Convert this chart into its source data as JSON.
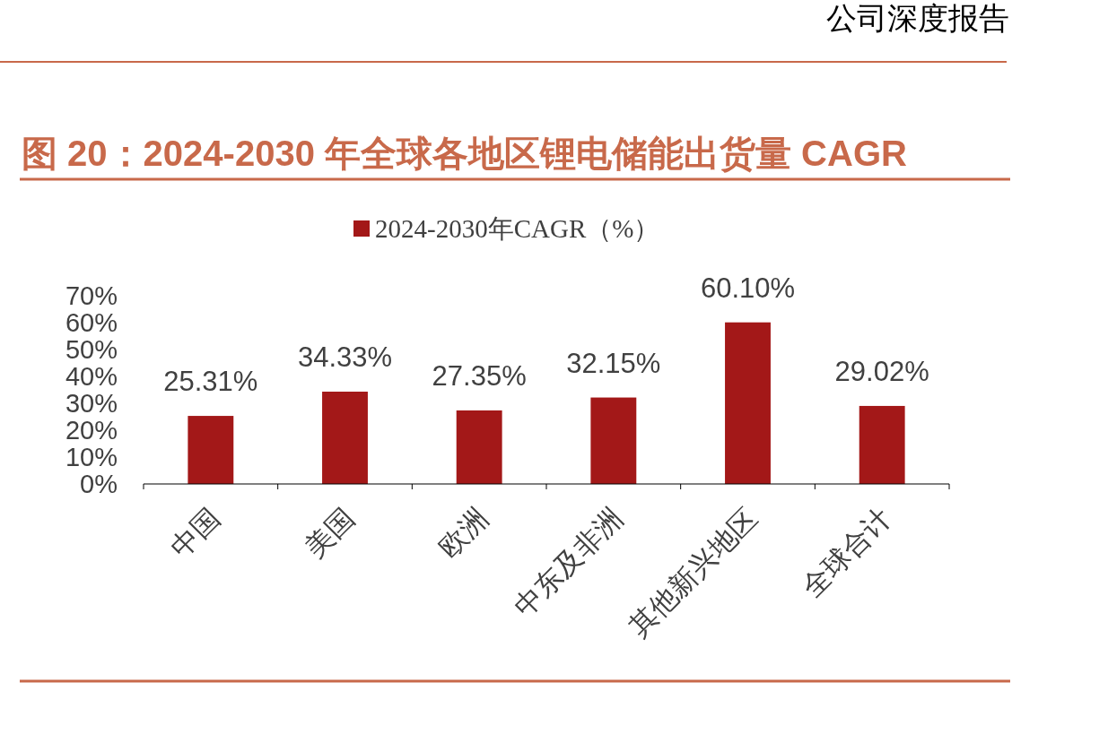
{
  "chart_data": {
    "type": "bar",
    "title": "图 20：2024-2030 年全球各地区锂电储能出货量 CAGR",
    "annotations": [
      "公司深度报告"
    ],
    "categories": [
      "中国",
      "美国",
      "欧洲",
      "中东及非洲",
      "其他新兴地区",
      "全球合计"
    ],
    "series": [
      {
        "name": "2024-2030年CAGR（%）",
        "color": "#a31818",
        "values": [
          25.31,
          34.33,
          27.35,
          32.15,
          60.1,
          29.02
        ],
        "value_labels": [
          "25.31%",
          "34.33%",
          "27.35%",
          "32.15%",
          "60.10%",
          "29.02%"
        ]
      }
    ],
    "ylim": [
      0,
      70
    ],
    "yticks": [
      {
        "value": 0,
        "label": "0%"
      },
      {
        "value": 10,
        "label": "10%"
      },
      {
        "value": 20,
        "label": "20%"
      },
      {
        "value": 30,
        "label": "30%"
      },
      {
        "value": 40,
        "label": "40%"
      },
      {
        "value": 50,
        "label": "50%"
      },
      {
        "value": 60,
        "label": "60%"
      },
      {
        "value": 70,
        "label": "70%"
      }
    ],
    "legend": "top",
    "grid": false
  }
}
